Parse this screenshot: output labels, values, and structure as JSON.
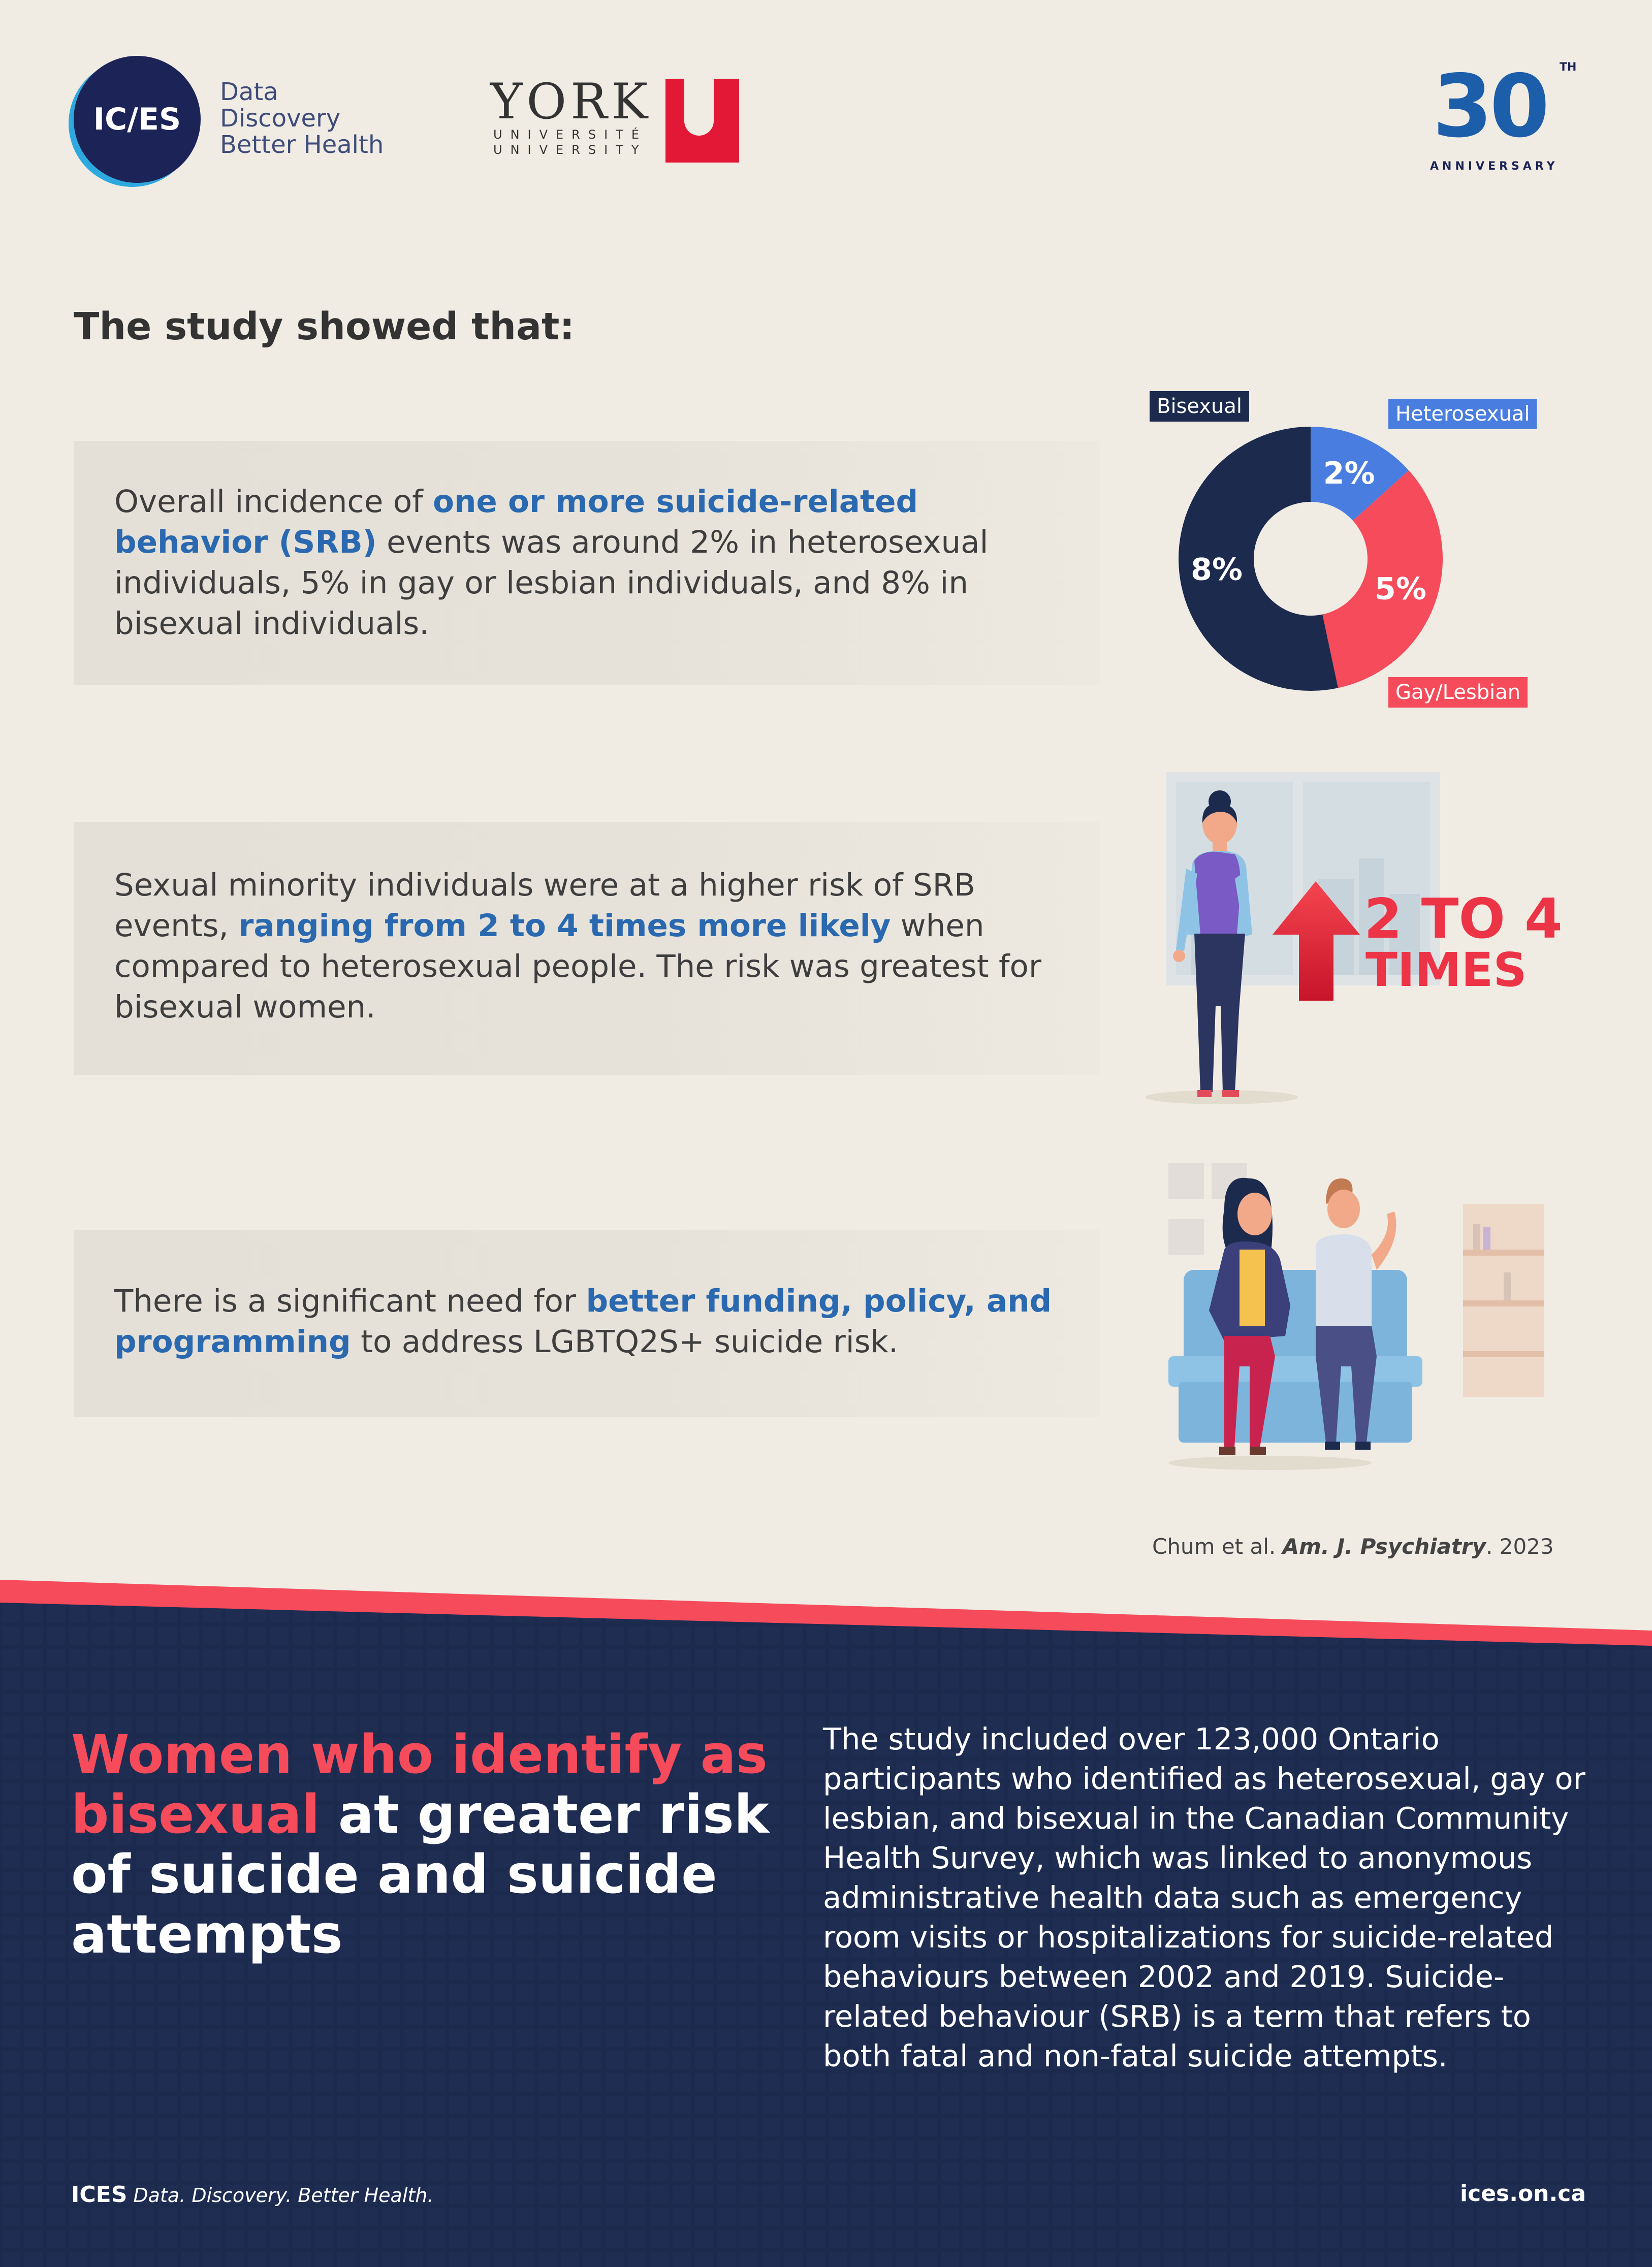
{
  "header": {
    "ices_logo": {
      "mark": "IC/ES",
      "tagline": [
        "Data",
        "Discovery",
        "Better Health"
      ]
    },
    "york_logo": {
      "wordmark": "YORK",
      "sub_fr": "UNIVERSITÉ",
      "sub_en": "UNIVERSITY",
      "letter": "U"
    },
    "anniversary": {
      "number": "30",
      "suffix": "TH",
      "label": "ANNIVERSARY"
    }
  },
  "study": {
    "heading": "The study showed that:",
    "findings": [
      {
        "pre": "Overall incidence of ",
        "highlight": "one or more suicide-related behavior (SRB)",
        "post": " events was around 2% in heterosexual individuals, 5% in gay or lesbian individuals, and 8% in bisexual individuals."
      },
      {
        "pre": "Sexual minority individuals were at a higher risk of SRB events, ",
        "highlight": "ranging from 2 to 4 times more likely",
        "post": " when compared to heterosexual people. The risk was greatest for bisexual women."
      },
      {
        "pre": "There is a significant need for ",
        "highlight": "better funding, policy, and programming",
        "post": " to address LGBTQ2S+ suicide risk."
      }
    ],
    "times_callout": {
      "line1": "2 TO 4",
      "line2": "TIMES"
    },
    "citation": {
      "authors": "Chum et al. ",
      "journal": "Am. J. Psychiatry",
      "year": ". 2023"
    }
  },
  "chart_data": {
    "type": "pie",
    "categories": [
      "Heterosexual",
      "Gay/Lesbian",
      "Bisexual"
    ],
    "values": [
      2,
      5,
      8
    ],
    "labels": [
      "2%",
      "5%",
      "8%"
    ],
    "colors": [
      "#4a7de0",
      "#f54b5b",
      "#1c2a4e"
    ]
  },
  "footer": {
    "title_highlight": "Women who identify as bisexual",
    "title_rest": " at greater risk of suicide and suicide attempts",
    "description": "The study included over 123,000 Ontario participants who identified as heterosexual, gay or lesbian, and bisexual in the Canadian Community Health Survey, which was linked to anonymous administrative health data such as emergency room visits or hospitalizations for suicide-related behaviours between 2002 and 2019. Suicide-related behaviour (SRB) is a term that refers to both fatal and non-fatal suicide attempts.",
    "brand_name": "ICES",
    "brand_tagline": "Data. Discovery. Better Health.",
    "url": "ices.on.ca"
  },
  "colors": {
    "background": "#f0ece4",
    "navy": "#1c2a4e",
    "accent_blue": "#2a69b0",
    "accent_red": "#f54b5b"
  }
}
